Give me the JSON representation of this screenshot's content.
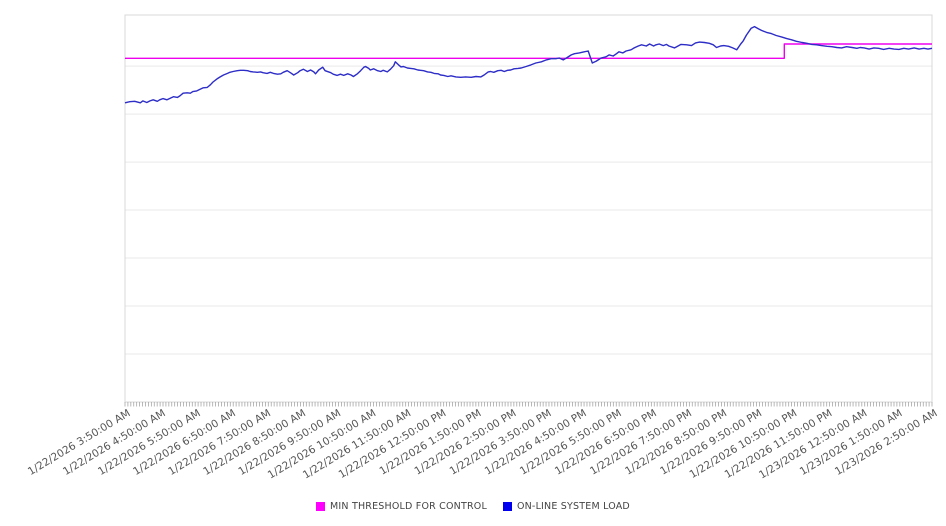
{
  "chart_data": {
    "type": "line",
    "title": "",
    "xlabel": "",
    "ylabel": "",
    "x_tick_labels": [
      "1/22/2026 3:50:00 AM",
      "1/22/2026 4:50:00 AM",
      "1/22/2026 5:50:00 AM",
      "1/22/2026 6:50:00 AM",
      "1/22/2026 7:50:00 AM",
      "1/22/2026 8:50:00 AM",
      "1/22/2026 9:50:00 AM",
      "1/22/2026 10:50:00 AM",
      "1/22/2026 11:50:00 AM",
      "1/22/2026 12:50:00 PM",
      "1/22/2026 1:50:00 PM",
      "1/22/2026 2:50:00 PM",
      "1/22/2026 3:50:00 PM",
      "1/22/2026 4:50:00 PM",
      "1/22/2026 5:50:00 PM",
      "1/22/2026 6:50:00 PM",
      "1/22/2026 7:50:00 PM",
      "1/22/2026 8:50:00 PM",
      "1/22/2026 9:50:00 PM",
      "1/22/2026 10:50:00 PM",
      "1/22/2026 11:50:00 PM",
      "1/23/2026 12:50:00 AM",
      "1/23/2026 1:50:00 AM",
      "1/23/2026 2:50:00 AM"
    ],
    "y_axis": {
      "labels_visible": false,
      "range": [
        0,
        100
      ],
      "gridline_values": [
        0,
        12.4,
        24.8,
        37.2,
        49.6,
        62.0,
        74.4,
        86.8
      ]
    },
    "minor_ticks": 277,
    "legend_position": "bottom-center",
    "points_format": "[fraction of time axis 0-1, value 0-100]",
    "series": [
      {
        "name": "MIN THRESHOLD FOR CONTROL",
        "color": "#ee00ee",
        "swatch_color": "#ff00ff",
        "points": [
          [
            0,
            88.8
          ],
          [
            0.817,
            88.8
          ],
          [
            0.817,
            92.5
          ],
          [
            1,
            92.5
          ]
        ]
      },
      {
        "name": "ON-LINE SYSTEM LOAD",
        "color": "#2d2dc7",
        "swatch_color": "#0000ee",
        "points": [
          [
            0,
            77.3
          ],
          [
            0.006,
            77.6
          ],
          [
            0.012,
            77.7
          ],
          [
            0.019,
            77.3
          ],
          [
            0.022,
            77.8
          ],
          [
            0.027,
            77.4
          ],
          [
            0.031,
            77.8
          ],
          [
            0.035,
            78.1
          ],
          [
            0.04,
            77.7
          ],
          [
            0.043,
            78.1
          ],
          [
            0.047,
            78.4
          ],
          [
            0.052,
            78.1
          ],
          [
            0.056,
            78.5
          ],
          [
            0.06,
            78.9
          ],
          [
            0.065,
            78.7
          ],
          [
            0.068,
            79.1
          ],
          [
            0.072,
            79.8
          ],
          [
            0.077,
            79.9
          ],
          [
            0.081,
            79.8
          ],
          [
            0.084,
            80.2
          ],
          [
            0.089,
            80.4
          ],
          [
            0.093,
            80.8
          ],
          [
            0.097,
            81.2
          ],
          [
            0.102,
            81.3
          ],
          [
            0.106,
            82
          ],
          [
            0.109,
            82.7
          ],
          [
            0.114,
            83.5
          ],
          [
            0.118,
            84
          ],
          [
            0.122,
            84.5
          ],
          [
            0.127,
            84.9
          ],
          [
            0.13,
            85.2
          ],
          [
            0.134,
            85.4
          ],
          [
            0.139,
            85.6
          ],
          [
            0.143,
            85.7
          ],
          [
            0.147,
            85.7
          ],
          [
            0.152,
            85.6
          ],
          [
            0.155,
            85.4
          ],
          [
            0.159,
            85.3
          ],
          [
            0.164,
            85.2
          ],
          [
            0.168,
            85.3
          ],
          [
            0.171,
            85.1
          ],
          [
            0.176,
            84.9
          ],
          [
            0.18,
            85.2
          ],
          [
            0.184,
            84.9
          ],
          [
            0.189,
            84.7
          ],
          [
            0.193,
            84.8
          ],
          [
            0.196,
            85.2
          ],
          [
            0.201,
            85.6
          ],
          [
            0.205,
            85.1
          ],
          [
            0.209,
            84.5
          ],
          [
            0.214,
            85.1
          ],
          [
            0.217,
            85.6
          ],
          [
            0.221,
            86
          ],
          [
            0.226,
            85.4
          ],
          [
            0.23,
            85.8
          ],
          [
            0.234,
            85.3
          ],
          [
            0.236,
            84.8
          ],
          [
            0.24,
            85.8
          ],
          [
            0.245,
            86.5
          ],
          [
            0.248,
            85.6
          ],
          [
            0.255,
            85.1
          ],
          [
            0.258,
            84.7
          ],
          [
            0.263,
            84.4
          ],
          [
            0.267,
            84.7
          ],
          [
            0.271,
            84.4
          ],
          [
            0.276,
            84.8
          ],
          [
            0.28,
            84.5
          ],
          [
            0.283,
            84.1
          ],
          [
            0.288,
            84.8
          ],
          [
            0.292,
            85.6
          ],
          [
            0.296,
            86.5
          ],
          [
            0.298,
            86.7
          ],
          [
            0.302,
            86.2
          ],
          [
            0.304,
            85.8
          ],
          [
            0.308,
            86.1
          ],
          [
            0.313,
            85.6
          ],
          [
            0.317,
            85.4
          ],
          [
            0.32,
            85.7
          ],
          [
            0.325,
            85.3
          ],
          [
            0.329,
            86
          ],
          [
            0.333,
            86.9
          ],
          [
            0.335,
            87.9
          ],
          [
            0.339,
            87.1
          ],
          [
            0.342,
            86.6
          ],
          [
            0.345,
            86.7
          ],
          [
            0.35,
            86.3
          ],
          [
            0.354,
            86.2
          ],
          [
            0.358,
            86.1
          ],
          [
            0.363,
            85.8
          ],
          [
            0.366,
            85.7
          ],
          [
            0.37,
            85.6
          ],
          [
            0.375,
            85.3
          ],
          [
            0.379,
            85.2
          ],
          [
            0.383,
            84.9
          ],
          [
            0.388,
            84.8
          ],
          [
            0.391,
            84.5
          ],
          [
            0.395,
            84.4
          ],
          [
            0.4,
            84.1
          ],
          [
            0.404,
            84.3
          ],
          [
            0.41,
            84
          ],
          [
            0.416,
            83.9
          ],
          [
            0.422,
            84
          ],
          [
            0.429,
            83.9
          ],
          [
            0.435,
            84.1
          ],
          [
            0.441,
            84
          ],
          [
            0.445,
            84.5
          ],
          [
            0.45,
            85.3
          ],
          [
            0.453,
            85.4
          ],
          [
            0.457,
            85.2
          ],
          [
            0.462,
            85.6
          ],
          [
            0.466,
            85.7
          ],
          [
            0.47,
            85.4
          ],
          [
            0.474,
            85.7
          ],
          [
            0.478,
            85.8
          ],
          [
            0.482,
            86.1
          ],
          [
            0.487,
            86.2
          ],
          [
            0.491,
            86.3
          ],
          [
            0.497,
            86.7
          ],
          [
            0.503,
            87.1
          ],
          [
            0.509,
            87.6
          ],
          [
            0.516,
            87.9
          ],
          [
            0.522,
            88.4
          ],
          [
            0.528,
            88.7
          ],
          [
            0.534,
            88.7
          ],
          [
            0.538,
            88.9
          ],
          [
            0.543,
            88.4
          ],
          [
            0.547,
            88.9
          ],
          [
            0.553,
            89.7
          ],
          [
            0.557,
            90
          ],
          [
            0.563,
            90.2
          ],
          [
            0.569,
            90.5
          ],
          [
            0.574,
            90.7
          ],
          [
            0.579,
            87.6
          ],
          [
            0.584,
            88.1
          ],
          [
            0.59,
            88.9
          ],
          [
            0.596,
            89.2
          ],
          [
            0.6,
            89.7
          ],
          [
            0.605,
            89.4
          ],
          [
            0.609,
            90
          ],
          [
            0.612,
            90.5
          ],
          [
            0.617,
            90.2
          ],
          [
            0.621,
            90.7
          ],
          [
            0.627,
            91
          ],
          [
            0.631,
            91.5
          ],
          [
            0.636,
            92
          ],
          [
            0.64,
            92.3
          ],
          [
            0.646,
            92
          ],
          [
            0.65,
            92.5
          ],
          [
            0.655,
            92
          ],
          [
            0.658,
            92.3
          ],
          [
            0.662,
            92.5
          ],
          [
            0.667,
            92.1
          ],
          [
            0.671,
            92.4
          ],
          [
            0.674,
            92
          ],
          [
            0.681,
            91.5
          ],
          [
            0.689,
            92.4
          ],
          [
            0.696,
            92.3
          ],
          [
            0.702,
            92.1
          ],
          [
            0.707,
            92.8
          ],
          [
            0.712,
            93
          ],
          [
            0.718,
            92.9
          ],
          [
            0.724,
            92.7
          ],
          [
            0.729,
            92.3
          ],
          [
            0.733,
            91.6
          ],
          [
            0.738,
            92
          ],
          [
            0.742,
            92.1
          ],
          [
            0.748,
            91.9
          ],
          [
            0.753,
            91.5
          ],
          [
            0.758,
            91
          ],
          [
            0.763,
            92.5
          ],
          [
            0.766,
            93.3
          ],
          [
            0.77,
            94.8
          ],
          [
            0.776,
            96.6
          ],
          [
            0.78,
            97
          ],
          [
            0.785,
            96.4
          ],
          [
            0.789,
            96
          ],
          [
            0.795,
            95.5
          ],
          [
            0.801,
            95.2
          ],
          [
            0.807,
            94.7
          ],
          [
            0.814,
            94.3
          ],
          [
            0.82,
            93.9
          ],
          [
            0.826,
            93.6
          ],
          [
            0.832,
            93.2
          ],
          [
            0.839,
            92.9
          ],
          [
            0.845,
            92.7
          ],
          [
            0.851,
            92.4
          ],
          [
            0.857,
            92.3
          ],
          [
            0.863,
            92.1
          ],
          [
            0.87,
            91.9
          ],
          [
            0.876,
            91.8
          ],
          [
            0.882,
            91.6
          ],
          [
            0.888,
            91.5
          ],
          [
            0.894,
            91.8
          ],
          [
            0.901,
            91.6
          ],
          [
            0.907,
            91.4
          ],
          [
            0.911,
            91.6
          ],
          [
            0.916,
            91.5
          ],
          [
            0.922,
            91.2
          ],
          [
            0.928,
            91.5
          ],
          [
            0.934,
            91.4
          ],
          [
            0.94,
            91.1
          ],
          [
            0.947,
            91.4
          ],
          [
            0.953,
            91.2
          ],
          [
            0.959,
            91.1
          ],
          [
            0.965,
            91.4
          ],
          [
            0.971,
            91.2
          ],
          [
            0.978,
            91.5
          ],
          [
            0.984,
            91.2
          ],
          [
            0.99,
            91.4
          ],
          [
            0.995,
            91.2
          ],
          [
            1,
            91.4
          ]
        ]
      }
    ]
  },
  "legend": {
    "items": [
      {
        "label": "MIN THRESHOLD FOR CONTROL"
      },
      {
        "label": "ON-LINE SYSTEM LOAD"
      }
    ]
  }
}
